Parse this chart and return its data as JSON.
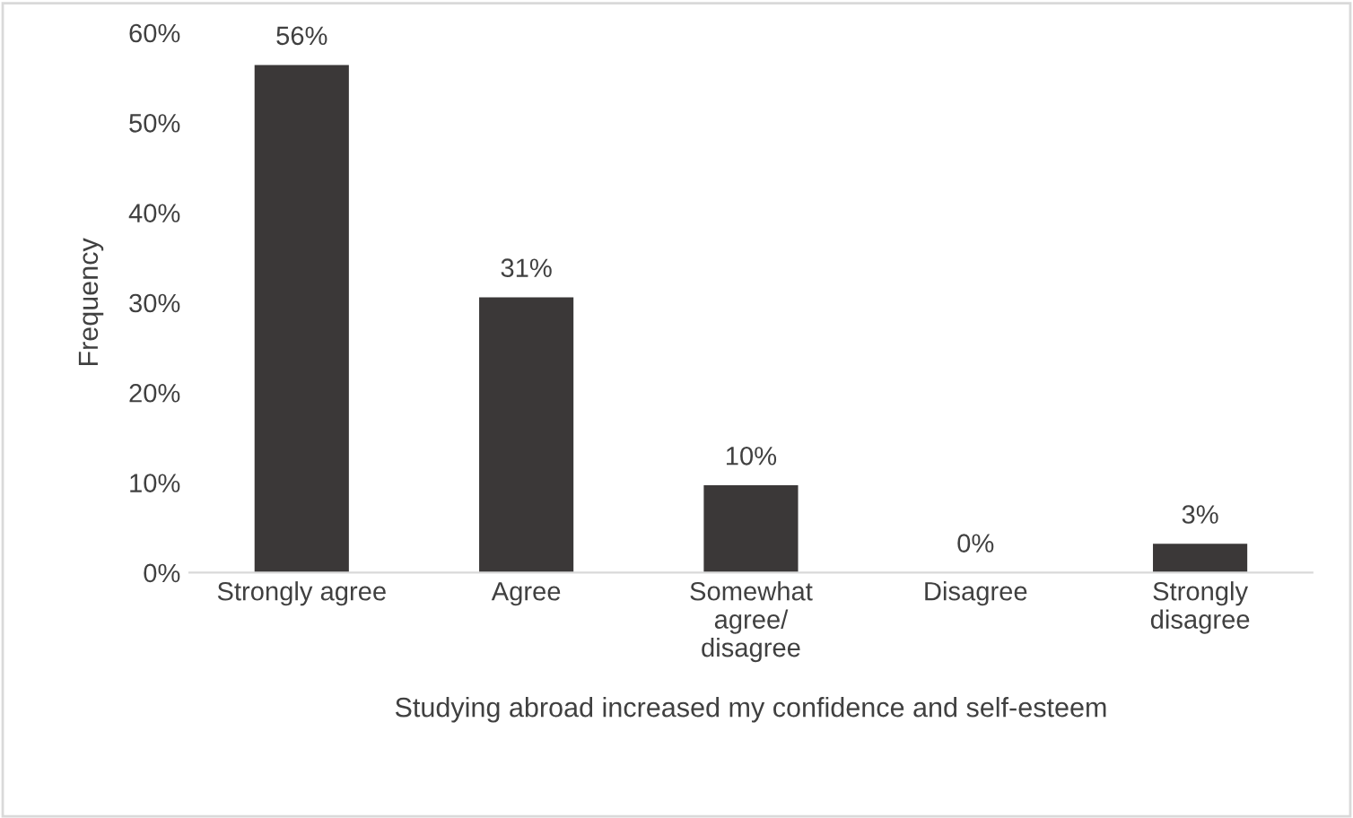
{
  "chart_data": {
    "type": "bar",
    "xlabel": "Studying abroad increased my confidence and self-esteem",
    "ylabel": "Frequency",
    "categories": [
      "Strongly agree",
      "Agree",
      "Somewhat\nagree/\ndisagree",
      "Disagree",
      "Strongly\ndisagree"
    ],
    "values": [
      56.4,
      30.6,
      9.7,
      0,
      3.2
    ],
    "value_labels": [
      "56%",
      "31%",
      "10%",
      "0%",
      "3%"
    ],
    "color": "#3b3838",
    "ylim": [
      0,
      60
    ],
    "yticks": [
      {
        "value": 0,
        "label": "0%"
      },
      {
        "value": 10,
        "label": "10%"
      },
      {
        "value": 20,
        "label": "20%"
      },
      {
        "value": 30,
        "label": "30%"
      },
      {
        "value": 40,
        "label": "40%"
      },
      {
        "value": 50,
        "label": "50%"
      },
      {
        "value": 60,
        "label": "60%"
      }
    ],
    "grid": false
  }
}
